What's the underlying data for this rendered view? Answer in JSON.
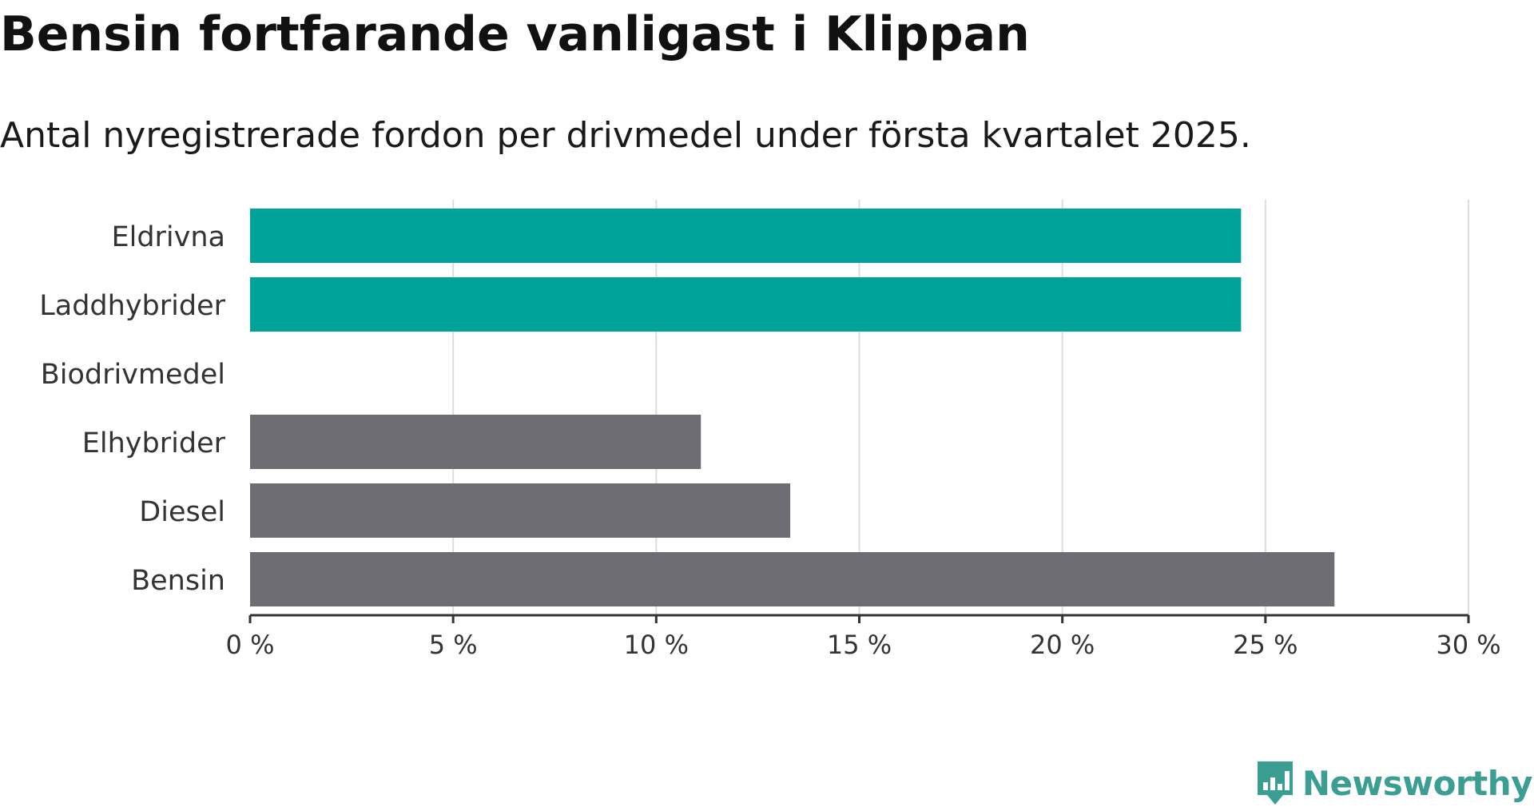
{
  "title": "Bensin fortfarande vanligast i Klippan",
  "subtitle": "Antal nyregistrerade fordon per drivmedel under första kvartalet 2025.",
  "chart_data": {
    "type": "bar",
    "orientation": "horizontal",
    "categories": [
      "Eldrivna",
      "Laddhybrider",
      "Biodrivmedel",
      "Elhybrider",
      "Diesel",
      "Bensin"
    ],
    "values": [
      24.4,
      24.4,
      0,
      11.1,
      13.3,
      26.7
    ],
    "bar_colors": [
      "#00a39a",
      "#00a39a",
      "#00a39a",
      "#6e6d73",
      "#6e6d73",
      "#6e6d73"
    ],
    "xlim": [
      0,
      30
    ],
    "x_ticks": [
      0,
      5,
      10,
      15,
      20,
      25,
      30
    ],
    "x_tick_labels": [
      "0 %",
      "5 %",
      "10 %",
      "15 %",
      "20 %",
      "25 %",
      "30 %"
    ],
    "xlabel": "",
    "ylabel": "",
    "grid": "vertical"
  },
  "logo": {
    "text": "Newsworthy",
    "color": "#3a9e92",
    "icon": "newsworthy-logo-icon"
  }
}
